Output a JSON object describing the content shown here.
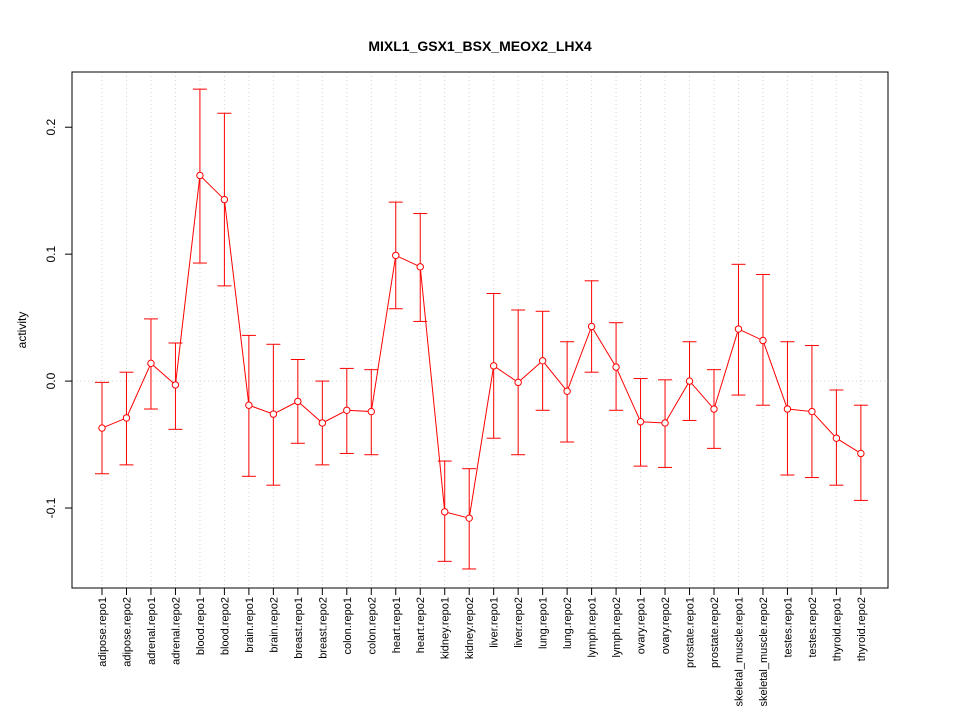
{
  "chart_data": {
    "type": "line",
    "title": "MIXL1_GSX1_BSX_MEOX2_LHX4",
    "xlabel": "",
    "ylabel": "activity",
    "ylim": [
      -0.163,
      0.2435
    ],
    "yticks": [
      -0.1,
      0.0,
      0.1,
      0.2
    ],
    "ytick_labels": [
      "-0.1",
      "0.0",
      "0.1",
      "0.2"
    ],
    "grid": true,
    "grid_style": "dotted",
    "series_color": "#ff0000",
    "grid_color": "#d3d3d3",
    "categories": [
      "adipose.repo1",
      "adipose.repo2",
      "adrenal.repo1",
      "adrenal.repo2",
      "blood.repo1",
      "blood.repo2",
      "brain.repo1",
      "brain.repo2",
      "breast.repo1",
      "breast.repo2",
      "colon.repo1",
      "colon.repo2",
      "heart.repo1",
      "heart.repo2",
      "kidney.repo1",
      "kidney.repo2",
      "liver.repo1",
      "liver.repo2",
      "lung.repo1",
      "lung.repo2",
      "lymph.repo1",
      "lymph.repo2",
      "ovary.repo1",
      "ovary.repo2",
      "prostate.repo1",
      "prostate.repo2",
      "skeletal_muscle.repo1",
      "skeletal_muscle.repo2",
      "testes.repo1",
      "testes.repo2",
      "thyroid.repo1",
      "thyroid.repo2"
    ],
    "series": [
      {
        "values": [
          -0.037,
          -0.029,
          0.014,
          -0.003,
          0.162,
          0.143,
          -0.019,
          -0.026,
          -0.016,
          -0.033,
          -0.023,
          -0.024,
          0.099,
          0.09,
          -0.103,
          -0.108,
          0.012,
          -0.001,
          0.016,
          -0.008,
          0.043,
          0.011,
          -0.032,
          -0.033,
          0.0,
          -0.022,
          0.041,
          0.032,
          -0.022,
          -0.024,
          -0.045,
          -0.057
        ],
        "lower": [
          -0.073,
          -0.066,
          -0.022,
          -0.038,
          0.093,
          0.075,
          -0.075,
          -0.082,
          -0.049,
          -0.066,
          -0.057,
          -0.058,
          0.057,
          0.047,
          -0.142,
          -0.148,
          -0.045,
          -0.058,
          -0.023,
          -0.048,
          0.007,
          -0.023,
          -0.067,
          -0.068,
          -0.031,
          -0.053,
          -0.011,
          -0.019,
          -0.074,
          -0.076,
          -0.082,
          -0.094
        ],
        "upper": [
          -0.001,
          0.007,
          0.049,
          0.03,
          0.23,
          0.211,
          0.036,
          0.029,
          0.017,
          0.0,
          0.01,
          0.009,
          0.141,
          0.132,
          -0.063,
          -0.069,
          0.069,
          0.056,
          0.055,
          0.031,
          0.079,
          0.046,
          0.002,
          0.001,
          0.031,
          0.009,
          0.092,
          0.084,
          0.031,
          0.028,
          -0.007,
          -0.019
        ]
      }
    ]
  }
}
